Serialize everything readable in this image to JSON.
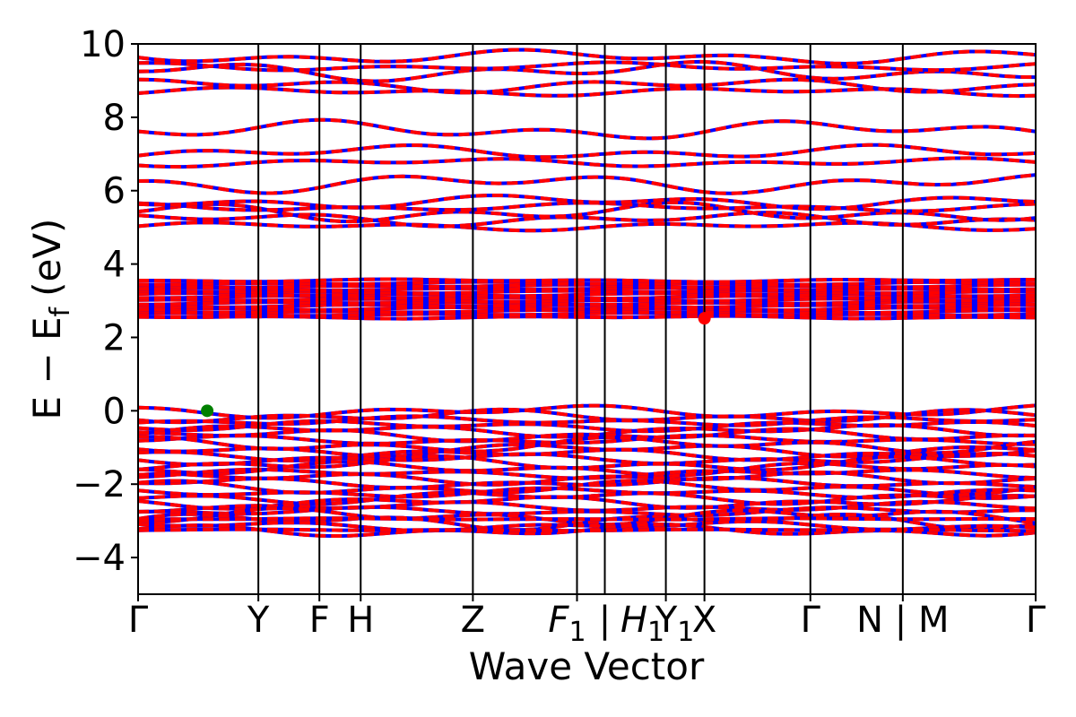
{
  "chart_data": {
    "type": "line",
    "title": "",
    "xlabel": "Wave Vector",
    "ylabel": "E − E_f (eV)",
    "ylabel_parts": {
      "main": "E − E",
      "sub": "f",
      "unit": "(eV)"
    },
    "ylim": [
      -5,
      10
    ],
    "yticks": [
      -4,
      -2,
      0,
      2,
      4,
      6,
      8,
      10
    ],
    "ytick_labels": [
      "−4",
      "−2",
      "0",
      "2",
      "4",
      "6",
      "8",
      "10"
    ],
    "kpath": [
      {
        "label": "Γ",
        "x": 0.0
      },
      {
        "label": "Y",
        "x": 0.134
      },
      {
        "label": "F",
        "x": 0.202
      },
      {
        "label": "H",
        "x": 0.248
      },
      {
        "label": "Z",
        "x": 0.373
      },
      {
        "label": "F1 | H1",
        "x": 0.489,
        "x2": 0.52
      },
      {
        "label": "Y1",
        "x": 0.588
      },
      {
        "label": "X",
        "x": 0.631
      },
      {
        "label": "Γ",
        "x": 0.749
      },
      {
        "label": "N | M",
        "x": 0.852
      },
      {
        "label": "Γ",
        "x": 1.0
      }
    ],
    "xtick_labels": [
      {
        "text": "Γ",
        "x": 0.0,
        "sub": ""
      },
      {
        "text": "Y",
        "x": 0.134,
        "sub": ""
      },
      {
        "text": "F",
        "x": 0.202,
        "sub": ""
      },
      {
        "text": "H",
        "x": 0.248,
        "sub": ""
      },
      {
        "text": "Z",
        "x": 0.373,
        "sub": ""
      },
      {
        "text": "F",
        "x": 0.478,
        "sub": "1",
        "italic": true
      },
      {
        "text": "|",
        "x": 0.52,
        "sub": ""
      },
      {
        "text": "H",
        "x": 0.562,
        "sub": "1",
        "italic": true
      },
      {
        "text": "Y",
        "x": 0.598,
        "sub": "1"
      },
      {
        "text": "X",
        "x": 0.631,
        "sub": ""
      },
      {
        "text": "Γ",
        "x": 0.749,
        "sub": ""
      },
      {
        "text": "N | M",
        "x": 0.852,
        "sub": ""
      },
      {
        "text": "Γ",
        "x": 1.0,
        "sub": ""
      }
    ],
    "series": [
      {
        "name": "",
        "color": "#0000ff",
        "style": "solid"
      },
      {
        "name": "",
        "color": "#ff0000",
        "style": "dashed"
      }
    ],
    "bands_conduction_upper": [
      5.03,
      5.22,
      5.4,
      5.55,
      5.7,
      6.2,
      6.77,
      7.05,
      7.65,
      8.7,
      8.87,
      9.25,
      9.38,
      9.65
    ],
    "bands_conduction_lower_range": [
      2.55,
      3.55
    ],
    "bands_valence_range": [
      -3.25,
      0.0
    ],
    "valence_isolated": [
      -2.95,
      -3.25
    ],
    "vbm": {
      "x": 0.077,
      "y": 0.0,
      "color": "#008000"
    },
    "cbm": {
      "x": 0.631,
      "y": 2.52,
      "color": "#ff0000"
    },
    "grid": false,
    "legend": "none"
  }
}
